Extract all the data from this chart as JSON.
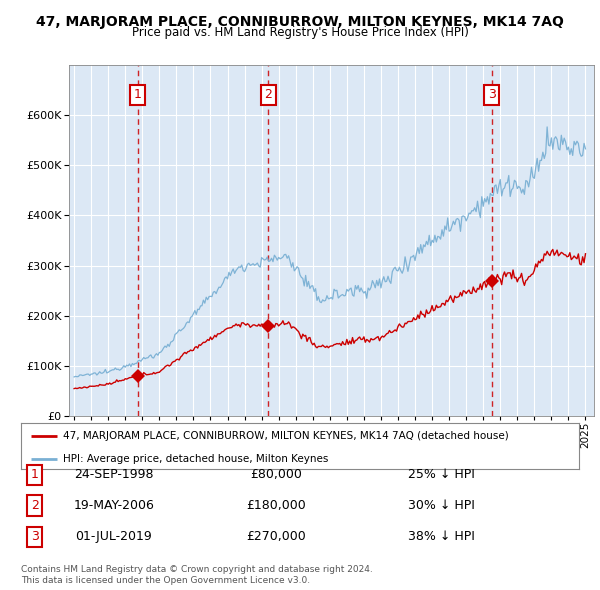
{
  "title": "47, MARJORAM PLACE, CONNIBURROW, MILTON KEYNES, MK14 7AQ",
  "subtitle": "Price paid vs. HM Land Registry's House Price Index (HPI)",
  "ylim": [
    0,
    700000
  ],
  "yticks": [
    0,
    100000,
    200000,
    300000,
    400000,
    500000,
    600000
  ],
  "plot_bg": "#dce8f5",
  "fig_bg": "#ffffff",
  "grid_color": "#ffffff",
  "sale_dates": [
    1998.73,
    2006.38,
    2019.5
  ],
  "sale_prices": [
    80000,
    180000,
    270000
  ],
  "sale_labels": [
    "1",
    "2",
    "3"
  ],
  "legend_text_red": "47, MARJORAM PLACE, CONNIBURROW, MILTON KEYNES, MK14 7AQ (detached house)",
  "legend_text_blue": "HPI: Average price, detached house, Milton Keynes",
  "table_rows": [
    [
      "1",
      "24-SEP-1998",
      "£80,000",
      "25% ↓ HPI"
    ],
    [
      "2",
      "19-MAY-2006",
      "£180,000",
      "30% ↓ HPI"
    ],
    [
      "3",
      "01-JUL-2019",
      "£270,000",
      "38% ↓ HPI"
    ]
  ],
  "footer": "Contains HM Land Registry data © Crown copyright and database right 2024.\nThis data is licensed under the Open Government Licence v3.0.",
  "red_color": "#cc0000",
  "blue_color": "#7ab0d4",
  "dashed_color": "#cc0000"
}
